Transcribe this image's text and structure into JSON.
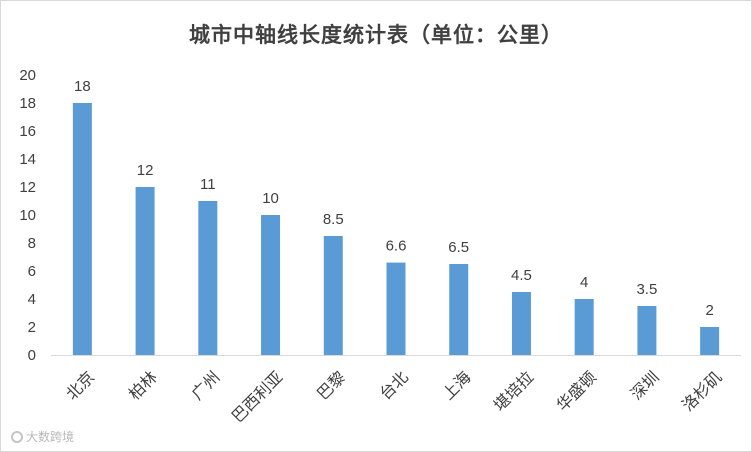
{
  "chart_data": {
    "type": "bar",
    "title": "城市中轴线长度统计表（单位：公里）",
    "categories": [
      "北京",
      "柏林",
      "广州",
      "巴西利亚",
      "巴黎",
      "台北",
      "上海",
      "堪培拉",
      "华盛顿",
      "深圳",
      "洛杉矶"
    ],
    "values": [
      18,
      12,
      11,
      10,
      8.5,
      6.6,
      6.5,
      4.5,
      4,
      3.5,
      2
    ],
    "data_labels": [
      "18",
      "12",
      "11",
      "10",
      "8.5",
      "6.6",
      "6.5",
      "4.5",
      "4",
      "3.5",
      "2"
    ],
    "ylim": [
      0,
      20
    ],
    "yticks": [
      0,
      2,
      4,
      6,
      8,
      10,
      12,
      14,
      16,
      18,
      20
    ],
    "grid": false,
    "bar_color": "#5B9BD5",
    "xlabel": "",
    "ylabel": ""
  },
  "watermark": {
    "text": "大数跨境"
  }
}
